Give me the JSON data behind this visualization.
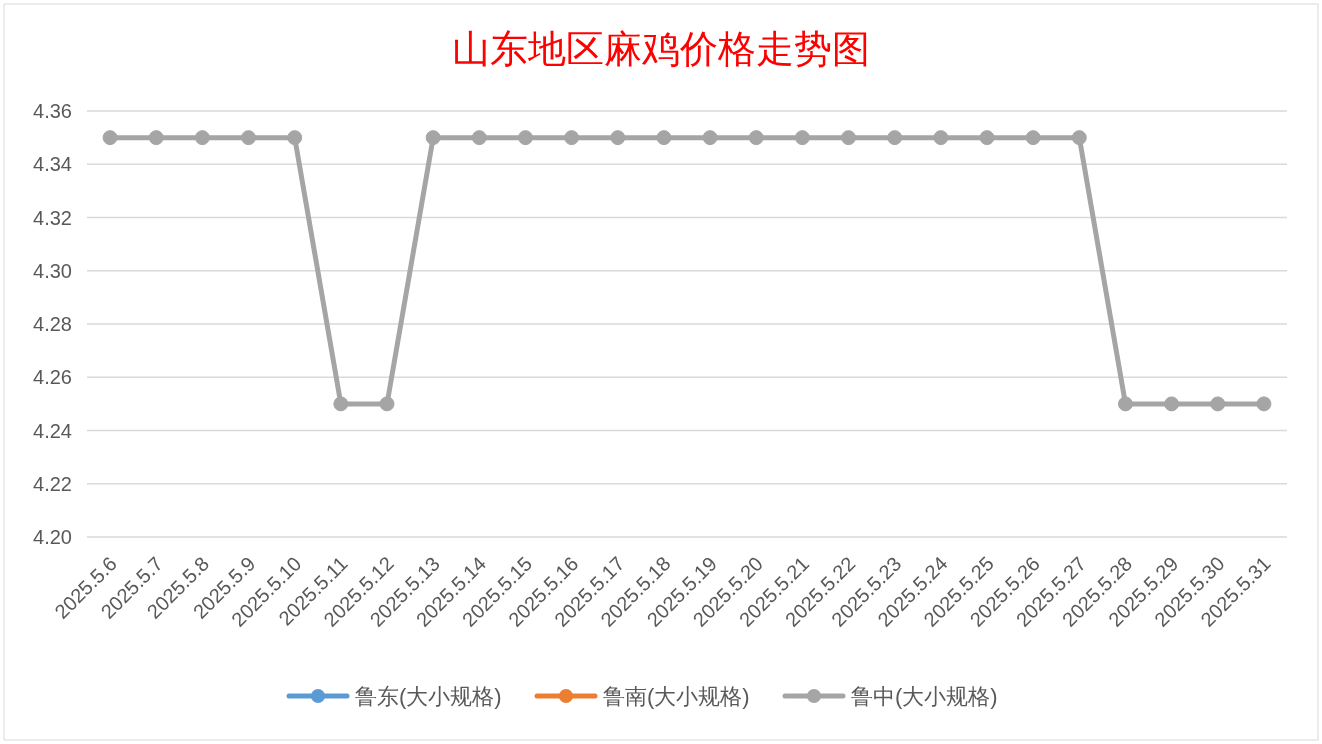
{
  "chart_data": {
    "type": "line",
    "title": "山东地区麻鸡价格走势图",
    "categories": [
      "2025.5.6",
      "2025.5.7",
      "2025.5.8",
      "2025.5.9",
      "2025.5.10",
      "2025.5.11",
      "2025.5.12",
      "2025.5.13",
      "2025.5.14",
      "2025.5.15",
      "2025.5.16",
      "2025.5.17",
      "2025.5.18",
      "2025.5.19",
      "2025.5.20",
      "2025.5.21",
      "2025.5.22",
      "2025.5.23",
      "2025.5.24",
      "2025.5.25",
      "2025.5.26",
      "2025.5.27",
      "2025.5.28",
      "2025.5.29",
      "2025.5.30",
      "2025.5.31"
    ],
    "series": [
      {
        "name": "鲁东(大小规格)",
        "color": "#5b9bd5",
        "values": [
          null,
          null,
          null,
          null,
          null,
          null,
          null,
          null,
          null,
          null,
          null,
          null,
          null,
          null,
          null,
          null,
          null,
          null,
          null,
          null,
          null,
          null,
          null,
          null,
          null,
          null
        ]
      },
      {
        "name": "鲁南(大小规格)",
        "color": "#ed7d31",
        "values": [
          null,
          null,
          null,
          null,
          null,
          null,
          null,
          null,
          null,
          null,
          null,
          null,
          null,
          null,
          null,
          null,
          null,
          null,
          null,
          null,
          null,
          null,
          null,
          null,
          null,
          null
        ]
      },
      {
        "name": "鲁中(大小规格)",
        "color": "#a5a5a5",
        "values": [
          4.35,
          4.35,
          4.35,
          4.35,
          4.35,
          4.25,
          4.25,
          4.35,
          4.35,
          4.35,
          4.35,
          4.35,
          4.35,
          4.35,
          4.35,
          4.35,
          4.35,
          4.35,
          4.35,
          4.35,
          4.35,
          4.35,
          4.25,
          4.25,
          4.25,
          4.25
        ]
      }
    ],
    "ylim": [
      4.2,
      4.36
    ],
    "yticks": [
      {
        "value": 4.2,
        "label": "4.20"
      },
      {
        "value": 4.22,
        "label": "4.22"
      },
      {
        "value": 4.24,
        "label": "4.24"
      },
      {
        "value": 4.26,
        "label": "4.26"
      },
      {
        "value": 4.28,
        "label": "4.28"
      },
      {
        "value": 4.3,
        "label": "4.30"
      },
      {
        "value": 4.32,
        "label": "4.32"
      },
      {
        "value": 4.34,
        "label": "4.34"
      },
      {
        "value": 4.36,
        "label": "4.36"
      }
    ],
    "grid": "y",
    "legend": "bottom",
    "marker": "circle",
    "line_style": "solid"
  }
}
